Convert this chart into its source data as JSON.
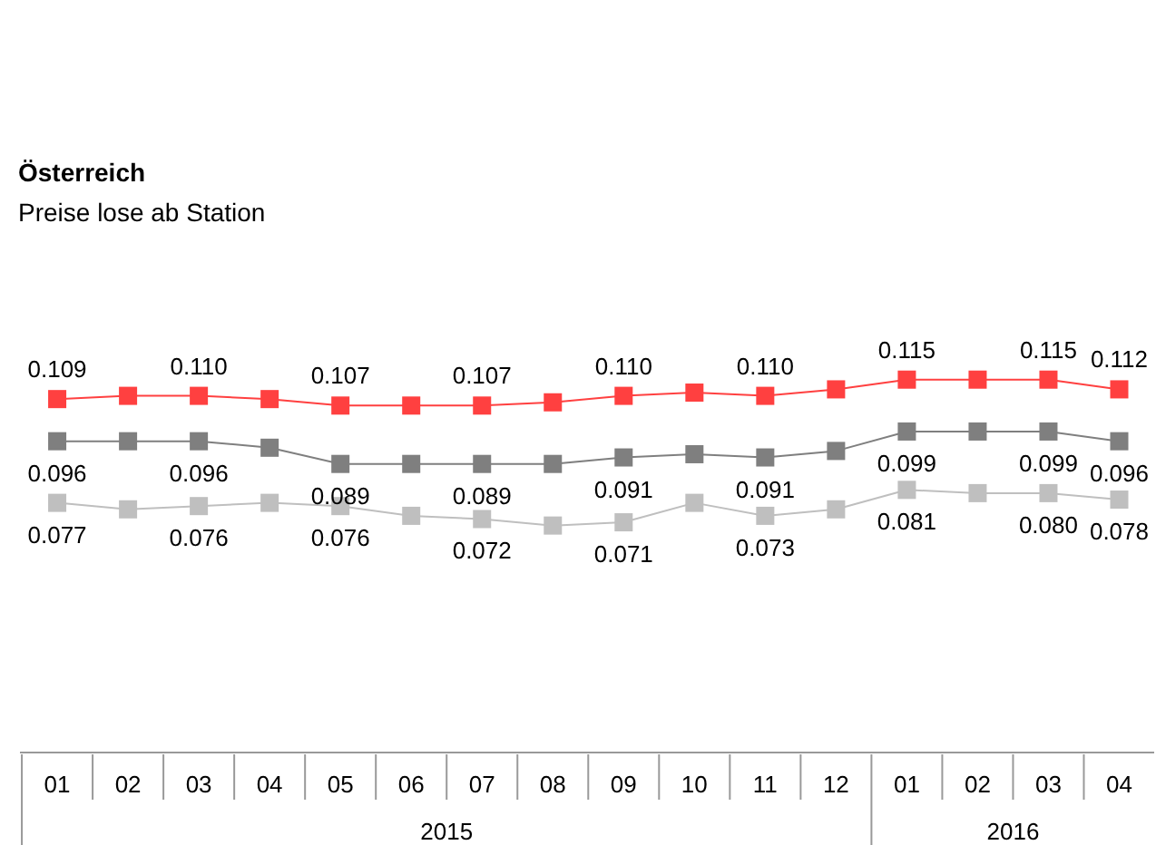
{
  "chart_data": {
    "type": "line",
    "title": "Österreich",
    "subtitle": "Preise lose ab Station",
    "marker": "square",
    "xlim": [
      "2014-12-16",
      "2016-04-16"
    ],
    "annotations": [
      "2015",
      "2016"
    ],
    "xticks": [
      {
        "value": "2015-01",
        "label": "01"
      },
      {
        "value": "2015-02",
        "label": "02"
      },
      {
        "value": "2015-03",
        "label": "03"
      },
      {
        "value": "2015-04",
        "label": "04"
      },
      {
        "value": "2015-05",
        "label": "05"
      },
      {
        "value": "2015-06",
        "label": "06"
      },
      {
        "value": "2015-07",
        "label": "07"
      },
      {
        "value": "2015-08",
        "label": "08"
      },
      {
        "value": "2015-09",
        "label": "09"
      },
      {
        "value": "2015-10",
        "label": "10"
      },
      {
        "value": "2015-11",
        "label": "11"
      },
      {
        "value": "2015-12",
        "label": "12"
      },
      {
        "value": "2016-01",
        "label": "01"
      },
      {
        "value": "2016-02",
        "label": "02"
      },
      {
        "value": "2016-03",
        "label": "03"
      },
      {
        "value": "2016-04",
        "label": "04"
      }
    ],
    "x": [
      "2015-01",
      "2015-02",
      "2015-03",
      "2015-04",
      "2015-05",
      "2015-06",
      "2015-07",
      "2015-08",
      "2015-09",
      "2015-10",
      "2015-11",
      "2015-12",
      "2016-01",
      "2016-02",
      "2016-03",
      "2016-04"
    ],
    "series": [
      {
        "color": "#ff4040",
        "values": [
          0.109,
          0.11,
          0.11,
          0.109,
          0.107,
          0.107,
          0.107,
          0.108,
          0.11,
          0.111,
          0.11,
          0.112,
          0.115,
          0.115,
          0.115,
          0.112
        ],
        "value_labels": [
          "0.109",
          null,
          "0.110",
          null,
          "0.107",
          null,
          "0.107",
          null,
          "0.110",
          null,
          "0.110",
          null,
          "0.115",
          null,
          "0.115",
          "0.112"
        ]
      },
      {
        "color": "#7f7f7f",
        "values": [
          0.096,
          0.096,
          0.096,
          0.094,
          0.089,
          0.089,
          0.089,
          0.089,
          0.091,
          0.092,
          0.091,
          0.093,
          0.099,
          0.099,
          0.099,
          0.096
        ],
        "value_labels": [
          "0.096",
          null,
          "0.096",
          null,
          "0.089",
          null,
          "0.089",
          null,
          "0.091",
          null,
          "0.091",
          null,
          "0.099",
          null,
          "0.099",
          "0.096"
        ]
      },
      {
        "color": "#bfbfbf",
        "values": [
          0.077,
          0.075,
          0.076,
          0.077,
          0.076,
          0.073,
          0.072,
          0.07,
          0.071,
          0.077,
          0.073,
          0.075,
          0.081,
          0.08,
          0.08,
          0.078
        ],
        "value_labels": [
          "0.077",
          null,
          "0.076",
          null,
          "0.076",
          null,
          "0.072",
          null,
          "0.071",
          null,
          "0.073",
          null,
          "0.081",
          null,
          "0.080",
          "0.078"
        ]
      }
    ]
  }
}
